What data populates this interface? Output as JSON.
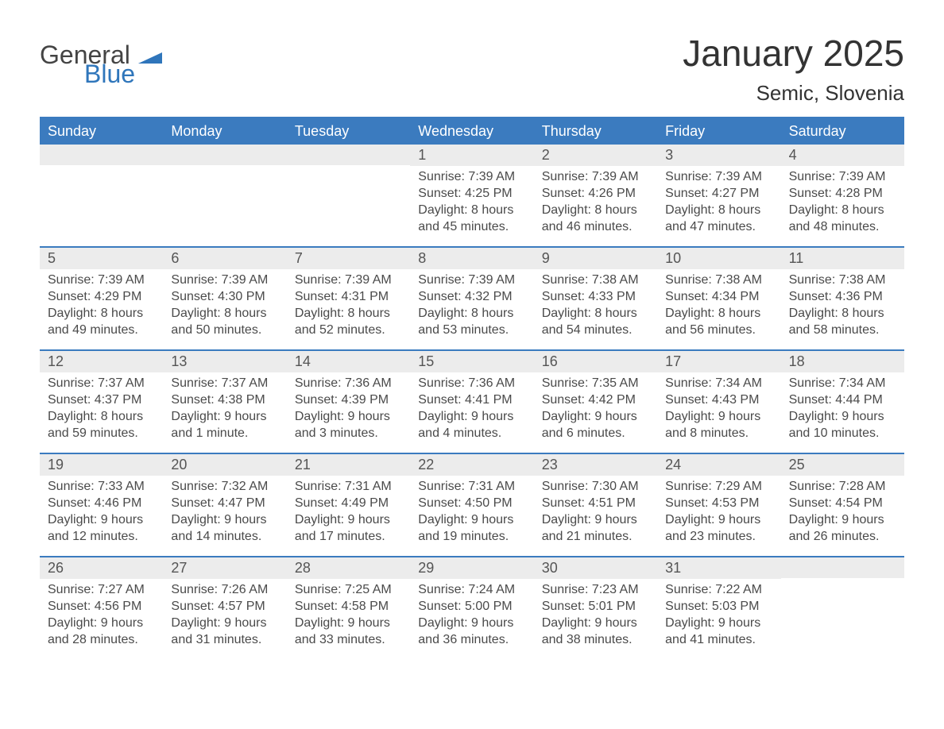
{
  "brand": {
    "word1": "General",
    "word2": "Blue",
    "flag_color": "#2f76bb",
    "text_gray": "#444444"
  },
  "header": {
    "title": "January 2025",
    "location": "Semic, Slovenia"
  },
  "colors": {
    "header_bg": "#3b7bbf",
    "header_text": "#ffffff",
    "daynum_bg": "#ececec",
    "body_text": "#4a4a4a",
    "rule": "#3b7bbf",
    "page_bg": "#ffffff"
  },
  "days_of_week": [
    "Sunday",
    "Monday",
    "Tuesday",
    "Wednesday",
    "Thursday",
    "Friday",
    "Saturday"
  ],
  "labels": {
    "sunrise": "Sunrise: ",
    "sunset": "Sunset: ",
    "daylight": "Daylight: "
  },
  "weeks": [
    [
      {
        "empty": true
      },
      {
        "empty": true
      },
      {
        "empty": true
      },
      {
        "day": "1",
        "sunrise": "7:39 AM",
        "sunset": "4:25 PM",
        "daylight1": "8 hours",
        "daylight2": "and 45 minutes."
      },
      {
        "day": "2",
        "sunrise": "7:39 AM",
        "sunset": "4:26 PM",
        "daylight1": "8 hours",
        "daylight2": "and 46 minutes."
      },
      {
        "day": "3",
        "sunrise": "7:39 AM",
        "sunset": "4:27 PM",
        "daylight1": "8 hours",
        "daylight2": "and 47 minutes."
      },
      {
        "day": "4",
        "sunrise": "7:39 AM",
        "sunset": "4:28 PM",
        "daylight1": "8 hours",
        "daylight2": "and 48 minutes."
      }
    ],
    [
      {
        "day": "5",
        "sunrise": "7:39 AM",
        "sunset": "4:29 PM",
        "daylight1": "8 hours",
        "daylight2": "and 49 minutes."
      },
      {
        "day": "6",
        "sunrise": "7:39 AM",
        "sunset": "4:30 PM",
        "daylight1": "8 hours",
        "daylight2": "and 50 minutes."
      },
      {
        "day": "7",
        "sunrise": "7:39 AM",
        "sunset": "4:31 PM",
        "daylight1": "8 hours",
        "daylight2": "and 52 minutes."
      },
      {
        "day": "8",
        "sunrise": "7:39 AM",
        "sunset": "4:32 PM",
        "daylight1": "8 hours",
        "daylight2": "and 53 minutes."
      },
      {
        "day": "9",
        "sunrise": "7:38 AM",
        "sunset": "4:33 PM",
        "daylight1": "8 hours",
        "daylight2": "and 54 minutes."
      },
      {
        "day": "10",
        "sunrise": "7:38 AM",
        "sunset": "4:34 PM",
        "daylight1": "8 hours",
        "daylight2": "and 56 minutes."
      },
      {
        "day": "11",
        "sunrise": "7:38 AM",
        "sunset": "4:36 PM",
        "daylight1": "8 hours",
        "daylight2": "and 58 minutes."
      }
    ],
    [
      {
        "day": "12",
        "sunrise": "7:37 AM",
        "sunset": "4:37 PM",
        "daylight1": "8 hours",
        "daylight2": "and 59 minutes."
      },
      {
        "day": "13",
        "sunrise": "7:37 AM",
        "sunset": "4:38 PM",
        "daylight1": "9 hours",
        "daylight2": "and 1 minute."
      },
      {
        "day": "14",
        "sunrise": "7:36 AM",
        "sunset": "4:39 PM",
        "daylight1": "9 hours",
        "daylight2": "and 3 minutes."
      },
      {
        "day": "15",
        "sunrise": "7:36 AM",
        "sunset": "4:41 PM",
        "daylight1": "9 hours",
        "daylight2": "and 4 minutes."
      },
      {
        "day": "16",
        "sunrise": "7:35 AM",
        "sunset": "4:42 PM",
        "daylight1": "9 hours",
        "daylight2": "and 6 minutes."
      },
      {
        "day": "17",
        "sunrise": "7:34 AM",
        "sunset": "4:43 PM",
        "daylight1": "9 hours",
        "daylight2": "and 8 minutes."
      },
      {
        "day": "18",
        "sunrise": "7:34 AM",
        "sunset": "4:44 PM",
        "daylight1": "9 hours",
        "daylight2": "and 10 minutes."
      }
    ],
    [
      {
        "day": "19",
        "sunrise": "7:33 AM",
        "sunset": "4:46 PM",
        "daylight1": "9 hours",
        "daylight2": "and 12 minutes."
      },
      {
        "day": "20",
        "sunrise": "7:32 AM",
        "sunset": "4:47 PM",
        "daylight1": "9 hours",
        "daylight2": "and 14 minutes."
      },
      {
        "day": "21",
        "sunrise": "7:31 AM",
        "sunset": "4:49 PM",
        "daylight1": "9 hours",
        "daylight2": "and 17 minutes."
      },
      {
        "day": "22",
        "sunrise": "7:31 AM",
        "sunset": "4:50 PM",
        "daylight1": "9 hours",
        "daylight2": "and 19 minutes."
      },
      {
        "day": "23",
        "sunrise": "7:30 AM",
        "sunset": "4:51 PM",
        "daylight1": "9 hours",
        "daylight2": "and 21 minutes."
      },
      {
        "day": "24",
        "sunrise": "7:29 AM",
        "sunset": "4:53 PM",
        "daylight1": "9 hours",
        "daylight2": "and 23 minutes."
      },
      {
        "day": "25",
        "sunrise": "7:28 AM",
        "sunset": "4:54 PM",
        "daylight1": "9 hours",
        "daylight2": "and 26 minutes."
      }
    ],
    [
      {
        "day": "26",
        "sunrise": "7:27 AM",
        "sunset": "4:56 PM",
        "daylight1": "9 hours",
        "daylight2": "and 28 minutes."
      },
      {
        "day": "27",
        "sunrise": "7:26 AM",
        "sunset": "4:57 PM",
        "daylight1": "9 hours",
        "daylight2": "and 31 minutes."
      },
      {
        "day": "28",
        "sunrise": "7:25 AM",
        "sunset": "4:58 PM",
        "daylight1": "9 hours",
        "daylight2": "and 33 minutes."
      },
      {
        "day": "29",
        "sunrise": "7:24 AM",
        "sunset": "5:00 PM",
        "daylight1": "9 hours",
        "daylight2": "and 36 minutes."
      },
      {
        "day": "30",
        "sunrise": "7:23 AM",
        "sunset": "5:01 PM",
        "daylight1": "9 hours",
        "daylight2": "and 38 minutes."
      },
      {
        "day": "31",
        "sunrise": "7:22 AM",
        "sunset": "5:03 PM",
        "daylight1": "9 hours",
        "daylight2": "and 41 minutes."
      },
      {
        "empty": true
      }
    ]
  ]
}
